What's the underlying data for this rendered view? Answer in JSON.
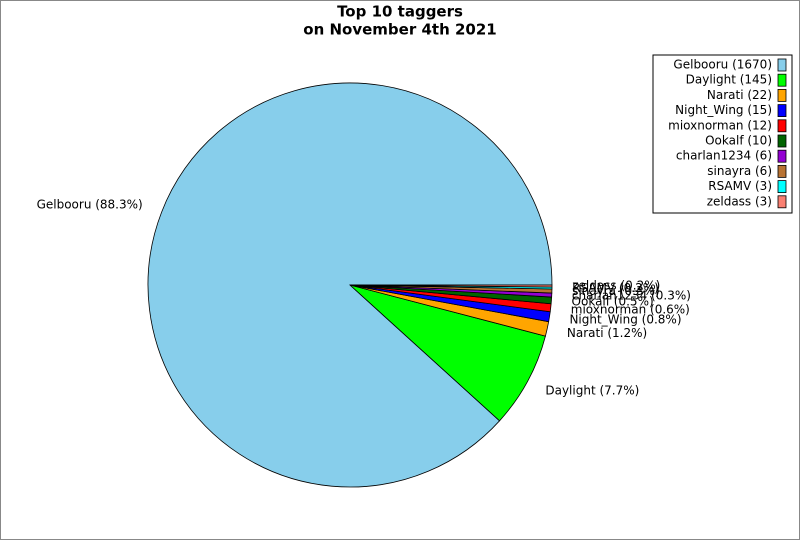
{
  "chart_data": {
    "type": "pie",
    "title": [
      "Top 10 taggers",
      "on November 4th 2021"
    ],
    "legend_labels": [
      "Gelbooru (1670)",
      "Daylight (145)",
      "Narati (22)",
      "Night_Wing (15)",
      "mioxnorman (12)",
      "Ookalf (10)",
      "charlan1234 (6)",
      "sinayra (6)",
      "RSAMV (3)",
      "zeldass (3)"
    ],
    "values": [
      1670,
      145,
      22,
      15,
      12,
      10,
      6,
      6,
      3,
      3
    ],
    "value_labels": [
      "Gelbooru (88.3%)",
      "Daylight (7.7%)",
      "Narati (1.2%)",
      "Night_Wing (0.8%)",
      "mioxnorman (0.6%)",
      "Ookalf (0.5%)",
      "charlan1234 (0.3%)",
      "sinayra (0.3%)",
      "RSAMV (0.2%)",
      "zeldass (0.2%)"
    ],
    "colors": [
      "#87ceeb",
      "#00ff00",
      "#ffa500",
      "#0000ff",
      "#ff0000",
      "#006400",
      "#9400d3",
      "#b87333",
      "#00ffff",
      "#fa8072"
    ],
    "legend": "upper right"
  }
}
